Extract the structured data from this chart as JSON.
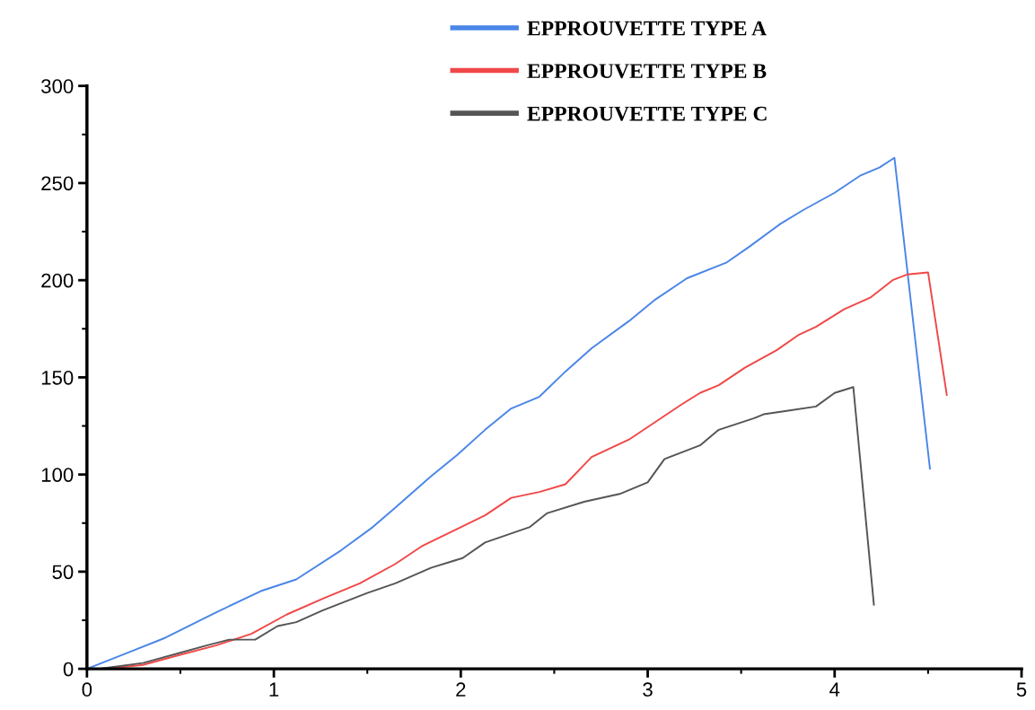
{
  "chart_data": {
    "type": "line",
    "xlim": [
      0,
      5
    ],
    "ylim": [
      0,
      300
    ],
    "xticks": [
      0,
      1,
      2,
      3,
      4,
      5
    ],
    "yticks": [
      0,
      50,
      100,
      150,
      200,
      250,
      300
    ],
    "grid": false,
    "legend": "top",
    "marker": "none",
    "line_style": "solid",
    "series": [
      {
        "name": "EPPROUVETTE TYPE A",
        "color": "#4a86e8",
        "x": [
          0,
          0.21,
          0.42,
          0.69,
          0.93,
          1.12,
          1.36,
          1.53,
          1.65,
          1.84,
          1.98,
          2.13,
          2.27,
          2.42,
          2.56,
          2.7,
          2.9,
          3.04,
          3.21,
          3.42,
          3.54,
          3.71,
          3.83,
          4.0,
          4.14,
          4.24,
          4.32,
          4.51
        ],
        "values": [
          0,
          8,
          16,
          29,
          40,
          46,
          61,
          73,
          83,
          99,
          110,
          123,
          134,
          140,
          153,
          165,
          179,
          190,
          201,
          209,
          217,
          229,
          236,
          245,
          254,
          258,
          263,
          103
        ]
      },
      {
        "name": "EPPROUVETTE TYPE B",
        "color": "#f04848",
        "x": [
          0.09,
          0.3,
          0.49,
          0.69,
          0.88,
          1.07,
          1.26,
          1.46,
          1.65,
          1.79,
          1.98,
          2.13,
          2.27,
          2.42,
          2.56,
          2.7,
          2.9,
          3.04,
          3.18,
          3.28,
          3.38,
          3.52,
          3.69,
          3.81,
          3.9,
          4.05,
          4.19,
          4.31,
          4.39,
          4.5,
          4.6
        ],
        "values": [
          0,
          2,
          7,
          12,
          18,
          28,
          36,
          44,
          54,
          63,
          72,
          79,
          88,
          91,
          95,
          109,
          118,
          127,
          136,
          142,
          146,
          155,
          164,
          172,
          176,
          185,
          191,
          200,
          203,
          204,
          141
        ]
      },
      {
        "name": "EPPROUVETTE TYPE C",
        "color": "#555555",
        "x": [
          0.06,
          0.3,
          0.49,
          0.64,
          0.76,
          0.9,
          1.02,
          1.12,
          1.26,
          1.5,
          1.65,
          1.84,
          2.01,
          2.13,
          2.37,
          2.46,
          2.66,
          2.85,
          3.0,
          3.09,
          3.28,
          3.38,
          3.57,
          3.62,
          3.76,
          3.9,
          4.0,
          4.1,
          4.21
        ],
        "values": [
          0,
          3,
          8,
          12,
          15,
          15,
          22,
          24,
          30,
          39,
          44,
          52,
          57,
          65,
          73,
          80,
          86,
          90,
          96,
          108,
          115,
          123,
          129,
          131,
          133,
          135,
          142,
          145,
          33
        ]
      }
    ]
  }
}
